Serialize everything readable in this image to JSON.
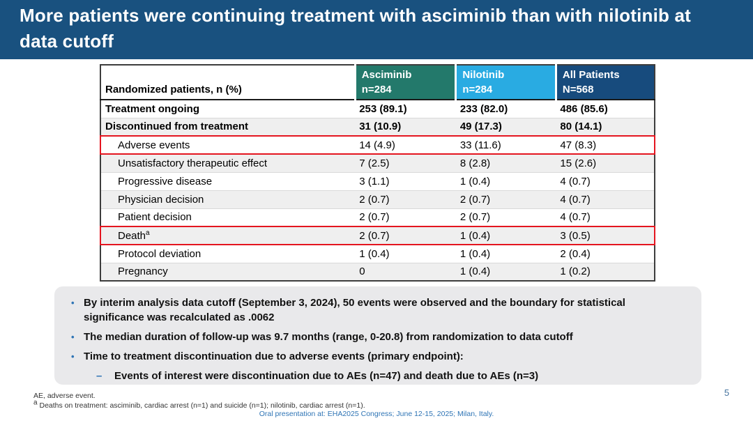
{
  "slide": {
    "title": "More patients were continuing treatment with asciminib than with nilotinib at data cutoff",
    "title_bar_color": "#19517F",
    "page_number": "5"
  },
  "table": {
    "corner_header": "Randomized patients, n (%)",
    "highlight_color": "#E4151F",
    "columns": [
      {
        "label": "Asciminib",
        "subtitle": "n=284",
        "color": "#23796B"
      },
      {
        "label": "Nilotinib",
        "subtitle": "n=284",
        "color": "#29ABE2"
      },
      {
        "label": "All Patients",
        "subtitle": "N=568",
        "color": "#174B7D"
      }
    ],
    "rows": [
      {
        "label": "Treatment ongoing",
        "values": [
          "253 (89.1)",
          "233 (82.0)",
          "486 (85.6)"
        ],
        "bold": true,
        "indent": false,
        "highlighted": false
      },
      {
        "label": "Discontinued from treatment",
        "values": [
          "31 (10.9)",
          "49 (17.3)",
          "80 (14.1)"
        ],
        "bold": true,
        "indent": false,
        "highlighted": false
      },
      {
        "label": "Adverse events",
        "values": [
          "14 (4.9)",
          "33 (11.6)",
          "47 (8.3)"
        ],
        "bold": false,
        "indent": true,
        "highlighted": true
      },
      {
        "label": "Unsatisfactory therapeutic effect",
        "values": [
          "7 (2.5)",
          "8 (2.8)",
          "15 (2.6)"
        ],
        "bold": false,
        "indent": true,
        "highlighted": false
      },
      {
        "label": "Progressive disease",
        "values": [
          "3 (1.1)",
          "1 (0.4)",
          "4 (0.7)"
        ],
        "bold": false,
        "indent": true,
        "highlighted": false
      },
      {
        "label": "Physician decision",
        "values": [
          "2 (0.7)",
          "2 (0.7)",
          "4 (0.7)"
        ],
        "bold": false,
        "indent": true,
        "highlighted": false
      },
      {
        "label": "Patient decision",
        "values": [
          "2 (0.7)",
          "2 (0.7)",
          "4 (0.7)"
        ],
        "bold": false,
        "indent": true,
        "highlighted": false
      },
      {
        "label": "Death",
        "superscript": "a",
        "values": [
          "2 (0.7)",
          "1 (0.4)",
          "3 (0.5)"
        ],
        "bold": false,
        "indent": true,
        "highlighted": true
      },
      {
        "label": "Protocol deviation",
        "values": [
          "1 (0.4)",
          "1 (0.4)",
          "2 (0.4)"
        ],
        "bold": false,
        "indent": true,
        "highlighted": false
      },
      {
        "label": "Pregnancy",
        "values": [
          "0",
          "1 (0.4)",
          "1 (0.2)"
        ],
        "bold": false,
        "indent": true,
        "highlighted": false
      }
    ]
  },
  "bullets": {
    "marker": "•",
    "sub_marker": "–",
    "items": [
      {
        "text": "By interim analysis data cutoff (September 3, 2024), 50 events were observed and the boundary for statistical significance was recalculated as .0062",
        "sub": []
      },
      {
        "text": "The median duration of follow-up was 9.7 months (range, 0-20.8) from randomization to data cutoff",
        "sub": []
      },
      {
        "text": "Time to treatment discontinuation due to adverse events (primary endpoint):",
        "sub": [
          "Events of interest were discontinuation due to AEs (n=47) and death due to AEs (n=3)"
        ]
      }
    ]
  },
  "footnotes": {
    "line1": "AE, adverse event.",
    "line2_superscript": "a",
    "line2": "Deaths on treatment: asciminib, cardiac arrest (n=1) and suicide (n=1); nilotinib, cardiac arrest (n=1).",
    "attribution": "Oral presentation at: EHA2025 Congress; June 12-15, 2025; Milan, Italy."
  }
}
